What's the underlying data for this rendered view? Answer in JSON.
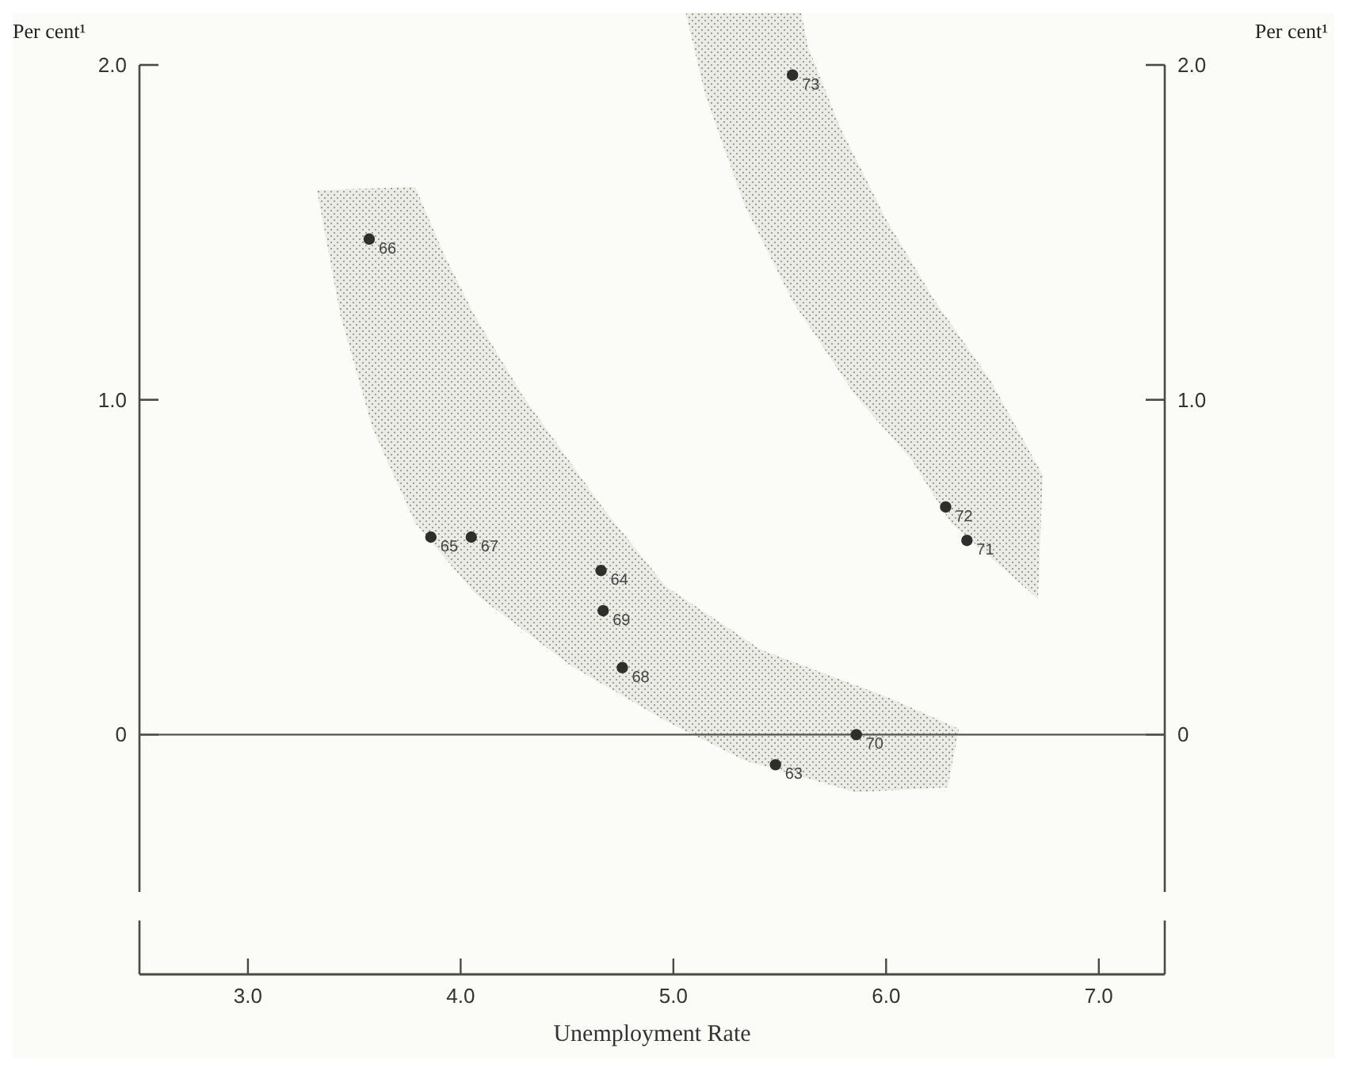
{
  "chart_data": {
    "type": "scatter",
    "xlabel": "Unemployment Rate",
    "ylabel": "Per cent¹",
    "y2label": "Per cent¹",
    "x": [
      3.57,
      3.86,
      4.05,
      4.66,
      4.67,
      4.76,
      5.86,
      5.48,
      5.56,
      6.28,
      6.38
    ],
    "series": [
      {
        "color": "#2e2e2a",
        "values": [
          1.48,
          0.59,
          0.59,
          0.49,
          0.37,
          0.2,
          0.0,
          -0.09,
          1.97,
          0.68,
          0.58
        ]
      }
    ],
    "marker": "circle",
    "xlim": [
      2.49,
      7.31
    ],
    "xticks": [
      {
        "value": 3,
        "label": "3.0"
      },
      {
        "value": 4,
        "label": "4.0"
      },
      {
        "value": 5,
        "label": "5.0"
      },
      {
        "value": 6,
        "label": "6.0"
      },
      {
        "value": 7,
        "label": "7.0"
      }
    ],
    "ylim": [
      -0.47,
      2.0
    ],
    "yticks": [
      0,
      {
        "value": 1,
        "label": "1.0"
      },
      {
        "value": 2,
        "label": "2.0"
      }
    ],
    "y2lim": [
      -0.47,
      2.0
    ],
    "y2ticks": [
      0,
      {
        "value": 1,
        "label": "1.0"
      },
      {
        "value": 2,
        "label": "2.0"
      }
    ],
    "ref_lines": [
      {
        "axis": "y",
        "value": 0,
        "color": "#55554c"
      }
    ],
    "annotations": [
      {
        "text": "66",
        "x": 3.57,
        "y": 1.48
      },
      {
        "text": "65",
        "x": 3.86,
        "y": 0.59
      },
      {
        "text": "67",
        "x": 4.05,
        "y": 0.59
      },
      {
        "text": "64",
        "x": 4.66,
        "y": 0.49
      },
      {
        "text": "69",
        "x": 4.67,
        "y": 0.37
      },
      {
        "text": "68",
        "x": 4.76,
        "y": 0.2
      },
      {
        "text": "70",
        "x": 5.86,
        "y": 0.0
      },
      {
        "text": "63",
        "x": 5.48,
        "y": -0.09
      },
      {
        "text": "73",
        "x": 5.56,
        "y": 1.97
      },
      {
        "text": "72",
        "x": 6.28,
        "y": 0.68
      },
      {
        "text": "71",
        "x": 6.38,
        "y": 0.58
      }
    ]
  }
}
